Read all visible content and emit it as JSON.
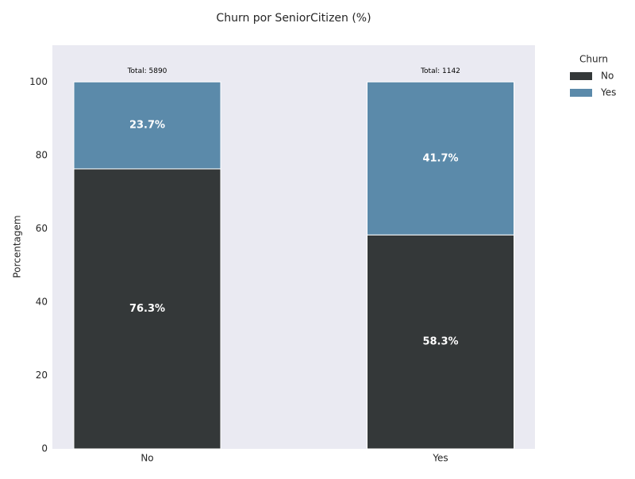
{
  "chart_data": {
    "type": "stacked_bar",
    "title": "Churn por SeniorCitizen (%)",
    "ylabel": "Porcentagem",
    "categories": [
      "No",
      "Yes"
    ],
    "series": [
      {
        "name": "No",
        "color": "#343839",
        "values": [
          76.3,
          58.3
        ],
        "value_labels": [
          "76.3%",
          "58.3%"
        ]
      },
      {
        "name": "Yes",
        "color": "#5b8aaa",
        "values": [
          23.7,
          41.7
        ],
        "value_labels": [
          "23.7%",
          "41.7%"
        ]
      }
    ],
    "annotations": [
      "Total: 5890",
      "Total: 1142"
    ],
    "legend_title": "Churn",
    "legend_position": "outside-right",
    "ylim": [
      0,
      110
    ],
    "yticks": [
      0,
      20,
      40,
      60,
      80,
      100
    ],
    "grid": false
  }
}
